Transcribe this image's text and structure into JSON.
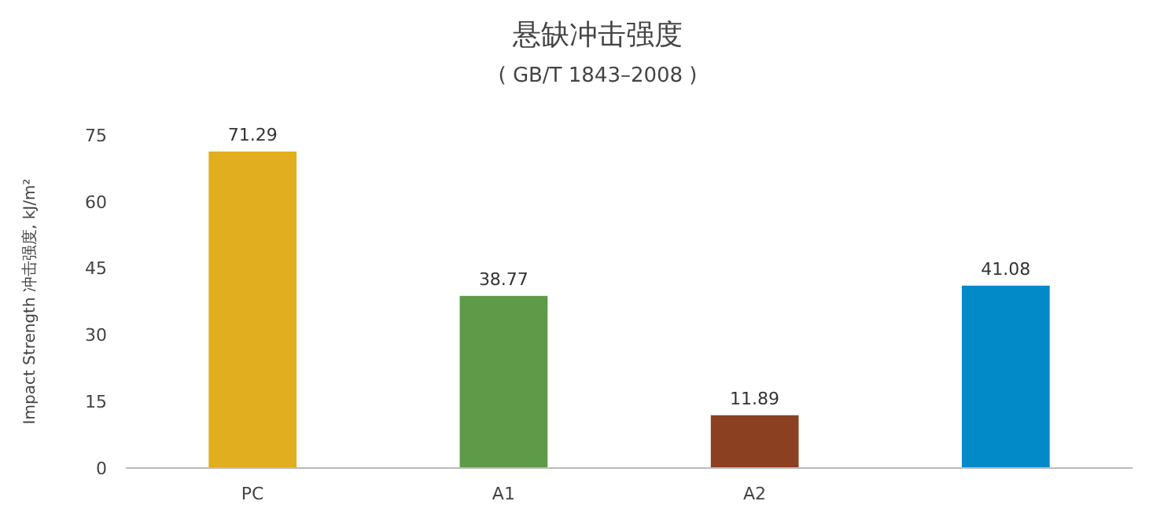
{
  "chart_data": {
    "type": "bar",
    "title": "悬缺冲击强度",
    "subtitle": "( GB/T 1843–2008 )",
    "ylabel": "Impact Strength 冲击强度, kJ/m²",
    "categories": [
      "PC",
      "A1",
      "A2",
      null
    ],
    "values": [
      71.29,
      38.77,
      11.89,
      41.08
    ],
    "colors": [
      "#e0ae1e",
      "#5e9a47",
      "#8b4022",
      "#0189c8"
    ],
    "ylim": [
      0,
      75
    ],
    "yticks": [
      0,
      15,
      30,
      45,
      60,
      75
    ],
    "data_labels": true,
    "grid": false
  }
}
